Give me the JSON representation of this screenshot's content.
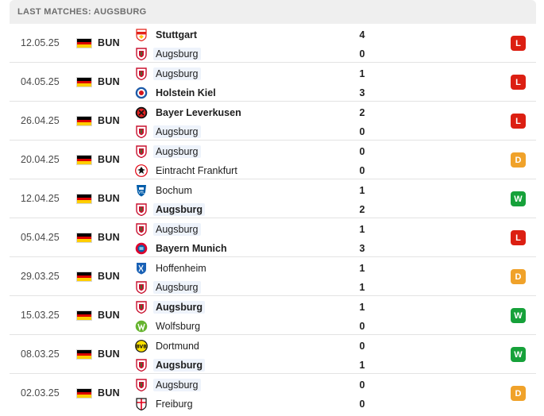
{
  "header": {
    "title": "LAST MATCHES: AUGSBURG"
  },
  "colors": {
    "L": "#dc1f12",
    "D": "#f0a22a",
    "W": "#16a13a",
    "highlight": "#eef3fb"
  },
  "matches": [
    {
      "date": "12.05.25",
      "competition": "BUN",
      "home": {
        "name": "Stuttgart",
        "score": "4",
        "bold": true,
        "logo": "stuttgart-crest-icon"
      },
      "away": {
        "name": "Augsburg",
        "score": "0",
        "bold": false,
        "logo": "augsburg-crest-icon"
      },
      "result": "L"
    },
    {
      "date": "04.05.25",
      "competition": "BUN",
      "home": {
        "name": "Augsburg",
        "score": "1",
        "bold": false,
        "logo": "augsburg-crest-icon"
      },
      "away": {
        "name": "Holstein Kiel",
        "score": "3",
        "bold": true,
        "logo": "holstein-kiel-crest-icon"
      },
      "result": "L"
    },
    {
      "date": "26.04.25",
      "competition": "BUN",
      "home": {
        "name": "Bayer Leverkusen",
        "score": "2",
        "bold": true,
        "logo": "leverkusen-crest-icon"
      },
      "away": {
        "name": "Augsburg",
        "score": "0",
        "bold": false,
        "logo": "augsburg-crest-icon"
      },
      "result": "L"
    },
    {
      "date": "20.04.25",
      "competition": "BUN",
      "home": {
        "name": "Augsburg",
        "score": "0",
        "bold": false,
        "logo": "augsburg-crest-icon"
      },
      "away": {
        "name": "Eintracht Frankfurt",
        "score": "0",
        "bold": false,
        "logo": "frankfurt-crest-icon"
      },
      "result": "D"
    },
    {
      "date": "12.04.25",
      "competition": "BUN",
      "home": {
        "name": "Bochum",
        "score": "1",
        "bold": false,
        "logo": "bochum-crest-icon"
      },
      "away": {
        "name": "Augsburg",
        "score": "2",
        "bold": true,
        "logo": "augsburg-crest-icon"
      },
      "result": "W"
    },
    {
      "date": "05.04.25",
      "competition": "BUN",
      "home": {
        "name": "Augsburg",
        "score": "1",
        "bold": false,
        "logo": "augsburg-crest-icon"
      },
      "away": {
        "name": "Bayern Munich",
        "score": "3",
        "bold": true,
        "logo": "bayern-crest-icon"
      },
      "result": "L"
    },
    {
      "date": "29.03.25",
      "competition": "BUN",
      "home": {
        "name": "Hoffenheim",
        "score": "1",
        "bold": false,
        "logo": "hoffenheim-crest-icon"
      },
      "away": {
        "name": "Augsburg",
        "score": "1",
        "bold": false,
        "logo": "augsburg-crest-icon"
      },
      "result": "D"
    },
    {
      "date": "15.03.25",
      "competition": "BUN",
      "home": {
        "name": "Augsburg",
        "score": "1",
        "bold": true,
        "logo": "augsburg-crest-icon"
      },
      "away": {
        "name": "Wolfsburg",
        "score": "0",
        "bold": false,
        "logo": "wolfsburg-crest-icon"
      },
      "result": "W"
    },
    {
      "date": "08.03.25",
      "competition": "BUN",
      "home": {
        "name": "Dortmund",
        "score": "0",
        "bold": false,
        "logo": "dortmund-crest-icon"
      },
      "away": {
        "name": "Augsburg",
        "score": "1",
        "bold": true,
        "logo": "augsburg-crest-icon"
      },
      "result": "W"
    },
    {
      "date": "02.03.25",
      "competition": "BUN",
      "home": {
        "name": "Augsburg",
        "score": "0",
        "bold": false,
        "logo": "augsburg-crest-icon"
      },
      "away": {
        "name": "Freiburg",
        "score": "0",
        "bold": false,
        "logo": "freiburg-crest-icon"
      },
      "result": "D"
    }
  ]
}
